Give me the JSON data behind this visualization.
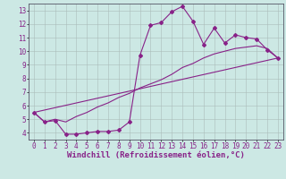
{
  "xlabel": "Windchill (Refroidissement éolien,°C)",
  "background_color": "#cce8e4",
  "grid_color": "#aabcba",
  "line_color": "#882288",
  "xlim": [
    -0.5,
    23.5
  ],
  "ylim": [
    3.5,
    13.5
  ],
  "xticks": [
    0,
    1,
    2,
    3,
    4,
    5,
    6,
    7,
    8,
    9,
    10,
    11,
    12,
    13,
    14,
    15,
    16,
    17,
    18,
    19,
    20,
    21,
    22,
    23
  ],
  "yticks": [
    4,
    5,
    6,
    7,
    8,
    9,
    10,
    11,
    12,
    13
  ],
  "series1_x": [
    0,
    1,
    2,
    3,
    4,
    5,
    6,
    7,
    8,
    9,
    10,
    11,
    12,
    13,
    14,
    15,
    16,
    17,
    18,
    19,
    20,
    21,
    22,
    23
  ],
  "series1_y": [
    5.5,
    4.8,
    4.9,
    3.9,
    3.9,
    4.0,
    4.1,
    4.1,
    4.2,
    4.8,
    9.7,
    11.9,
    12.1,
    12.9,
    13.3,
    12.2,
    10.5,
    11.7,
    10.6,
    11.2,
    11.0,
    10.9,
    10.1,
    9.5
  ],
  "series2_x": [
    0,
    1,
    2,
    3,
    4,
    5,
    6,
    7,
    8,
    9,
    10,
    11,
    12,
    13,
    14,
    15,
    16,
    17,
    18,
    19,
    20,
    21,
    22,
    23
  ],
  "series2_y": [
    5.5,
    4.8,
    5.0,
    4.8,
    5.2,
    5.5,
    5.9,
    6.2,
    6.6,
    6.9,
    7.3,
    7.6,
    7.9,
    8.3,
    8.8,
    9.1,
    9.5,
    9.8,
    10.0,
    10.2,
    10.3,
    10.4,
    10.2,
    9.5
  ],
  "series3_x": [
    0,
    23
  ],
  "series3_y": [
    5.5,
    9.5
  ],
  "marker": "D",
  "marker_size": 2.0,
  "linewidth": 0.8,
  "xlabel_fontsize": 6.5,
  "tick_fontsize": 5.5
}
